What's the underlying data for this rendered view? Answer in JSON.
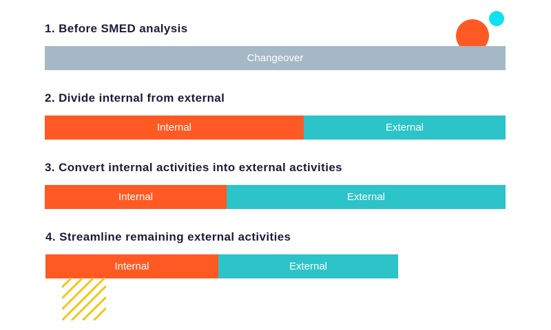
{
  "steps": [
    {
      "title": "1. Before SMED analysis",
      "segments": [
        {
          "label": "Changeover",
          "kind": "changeover"
        }
      ]
    },
    {
      "title": "2. Divide internal from external",
      "segments": [
        {
          "label": "Internal",
          "kind": "internal"
        },
        {
          "label": "External",
          "kind": "external"
        }
      ]
    },
    {
      "title": "3. Convert internal activities into external activities",
      "segments": [
        {
          "label": "Internal",
          "kind": "internal"
        },
        {
          "label": "External",
          "kind": "external"
        }
      ]
    },
    {
      "title": "4. Streamline remaining external activities",
      "segments": [
        {
          "label": "Internal",
          "kind": "internal"
        },
        {
          "label": "External",
          "kind": "external"
        }
      ]
    }
  ],
  "colors": {
    "changeover": "#a4b8c6",
    "internal": "#ff5a24",
    "external": "#2cc3c9",
    "accent_cyan": "#10e0f0",
    "hatch": "#f5c518",
    "title_text": "#1d1b3a"
  }
}
